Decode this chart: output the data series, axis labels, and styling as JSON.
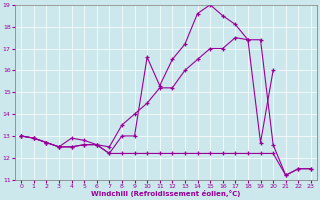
{
  "xlabel": "Windchill (Refroidissement éolien,°C)",
  "bg_color": "#cce8ec",
  "line_color": "#990099",
  "xlim": [
    -0.5,
    23.5
  ],
  "ylim": [
    11,
    19
  ],
  "xticks": [
    0,
    1,
    2,
    3,
    4,
    5,
    6,
    7,
    8,
    9,
    10,
    11,
    12,
    13,
    14,
    15,
    16,
    17,
    18,
    19,
    20,
    21,
    22,
    23
  ],
  "yticks": [
    11,
    12,
    13,
    14,
    15,
    16,
    17,
    18,
    19
  ],
  "line1_x": [
    0,
    1,
    2,
    3,
    4,
    5,
    6,
    7,
    8,
    9,
    10,
    11,
    12,
    13,
    14,
    15,
    16,
    17,
    18,
    19,
    20,
    21,
    22,
    23
  ],
  "line1_y": [
    13,
    12.9,
    12.7,
    12.5,
    12.5,
    12.6,
    12.6,
    12.2,
    12.2,
    12.2,
    12.2,
    12.2,
    12.2,
    12.2,
    12.2,
    12.2,
    12.2,
    12.2,
    12.2,
    12.2,
    12.2,
    11.2,
    11.5,
    11.5
  ],
  "line2_x": [
    0,
    1,
    2,
    3,
    4,
    5,
    6,
    7,
    8,
    9,
    10,
    11,
    12,
    13,
    14,
    15,
    16,
    17,
    18,
    19,
    20,
    21,
    22,
    23
  ],
  "line2_y": [
    13,
    12.9,
    12.7,
    12.5,
    12.5,
    12.6,
    12.6,
    12.2,
    13.0,
    13.0,
    16.6,
    15.3,
    16.5,
    17.2,
    18.6,
    19.0,
    18.5,
    18.1,
    17.4,
    17.4,
    12.6,
    11.2,
    11.5,
    11.5
  ],
  "line3_x": [
    0,
    1,
    2,
    3,
    4,
    5,
    6,
    7,
    8,
    9,
    10,
    11,
    12,
    13,
    14,
    15,
    16,
    17,
    18,
    19,
    20
  ],
  "line3_y": [
    13,
    12.9,
    12.7,
    12.5,
    12.9,
    12.8,
    12.6,
    12.5,
    13.5,
    14.0,
    14.5,
    15.2,
    15.2,
    16.0,
    16.5,
    17.0,
    17.0,
    17.5,
    17.4,
    12.7,
    16.0
  ]
}
